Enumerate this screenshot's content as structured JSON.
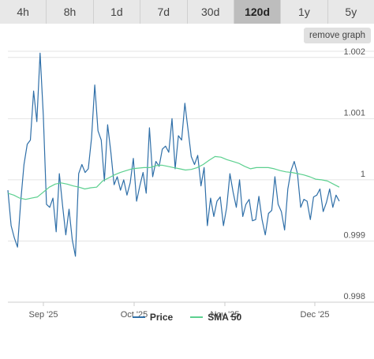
{
  "tabs": [
    {
      "label": "4h",
      "active": false
    },
    {
      "label": "8h",
      "active": false
    },
    {
      "label": "1d",
      "active": false
    },
    {
      "label": "7d",
      "active": false
    },
    {
      "label": "30d",
      "active": false
    },
    {
      "label": "120d",
      "active": true
    },
    {
      "label": "1y",
      "active": false
    },
    {
      "label": "5y",
      "active": false
    }
  ],
  "remove_graph_label": "remove graph",
  "colors": {
    "price": "#2f6fa8",
    "sma": "#5cd08f",
    "grid": "#e4e4e4"
  },
  "chart_data": {
    "type": "line",
    "title": "",
    "xlabel": "",
    "ylabel": "",
    "x_ticks": [
      "Sep '25",
      "Oct '25",
      "Nov '25",
      "Dec '25"
    ],
    "y_ticks": [
      0.998,
      0.999,
      1,
      1.001,
      1.002
    ],
    "y_tick_labels": [
      "0.998",
      "0.999",
      "1",
      "1.001",
      "1.002"
    ],
    "ylim": [
      0.998,
      1.0021
    ],
    "grid": true,
    "legend_position": "bottom-center",
    "series": [
      {
        "name": "Price",
        "values": [
          0.99983,
          0.99925,
          0.99905,
          0.9989,
          0.99965,
          1.00025,
          1.00058,
          1.00065,
          1.00145,
          1.00095,
          1.00207,
          1.00105,
          0.9996,
          0.99955,
          0.9997,
          0.99915,
          1.0001,
          0.99958,
          0.9991,
          0.99952,
          0.99902,
          0.99875,
          1.0001,
          1.00025,
          1.00012,
          1.00018,
          1.00068,
          1.00155,
          1.0008,
          1.00065,
          0.99998,
          1.0009,
          1.00045,
          0.99992,
          1.00005,
          0.99983,
          1.0,
          0.99975,
          0.99995,
          1.00035,
          0.99965,
          0.9999,
          1.00012,
          0.99978,
          1.00085,
          1.00005,
          1.0003,
          1.00022,
          1.0005,
          1.00055,
          1.00045,
          1.001,
          1.00018,
          1.00072,
          1.00065,
          1.00125,
          1.00082,
          1.00038,
          1.00025,
          1.0004,
          0.9999,
          1.0002,
          0.99925,
          0.9997,
          0.9994,
          0.99965,
          0.99972,
          0.99925,
          0.99955,
          1.0001,
          0.9998,
          0.99955,
          1.0,
          0.9994,
          0.9996,
          0.99968,
          0.99933,
          0.99935,
          0.99973,
          0.99935,
          0.9991,
          0.99945,
          0.9995,
          1.00005,
          0.9996,
          0.99948,
          0.99918,
          0.99985,
          1.00015,
          1.0003,
          1.0001,
          0.99955,
          0.99968,
          0.99965,
          0.99935,
          0.99972,
          0.99975,
          0.99985,
          0.99948,
          0.99963,
          0.99985,
          0.99955,
          0.99975,
          0.99965
        ]
      },
      {
        "name": "SMA 50",
        "values": [
          0.99978,
          0.99975,
          0.9997,
          0.99968,
          0.9997,
          0.99972,
          0.9998,
          0.99988,
          0.99993,
          0.99995,
          0.99993,
          0.9999,
          0.99988,
          0.99985,
          0.99987,
          0.99988,
          0.99998,
          1.00003,
          1.00008,
          1.00012,
          1.00015,
          1.00018,
          1.00019,
          1.0002,
          1.0002,
          1.00023,
          1.00024,
          1.00022,
          1.0002,
          1.00018,
          1.00016,
          1.00017,
          1.0002,
          1.00025,
          1.00032,
          1.00038,
          1.00037,
          1.00033,
          1.0003,
          1.00027,
          1.00022,
          1.00018,
          1.0002,
          1.0002,
          1.0002,
          1.00018,
          1.00015,
          1.00013,
          1.00012,
          1.0001,
          1.00008,
          1.00005,
          1.00001,
          1.0,
          0.99998,
          0.99993,
          0.99988
        ]
      }
    ]
  },
  "legend": [
    {
      "label": "Price",
      "color": "#2f6fa8"
    },
    {
      "label": "SMA 50",
      "color": "#5cd08f"
    }
  ]
}
